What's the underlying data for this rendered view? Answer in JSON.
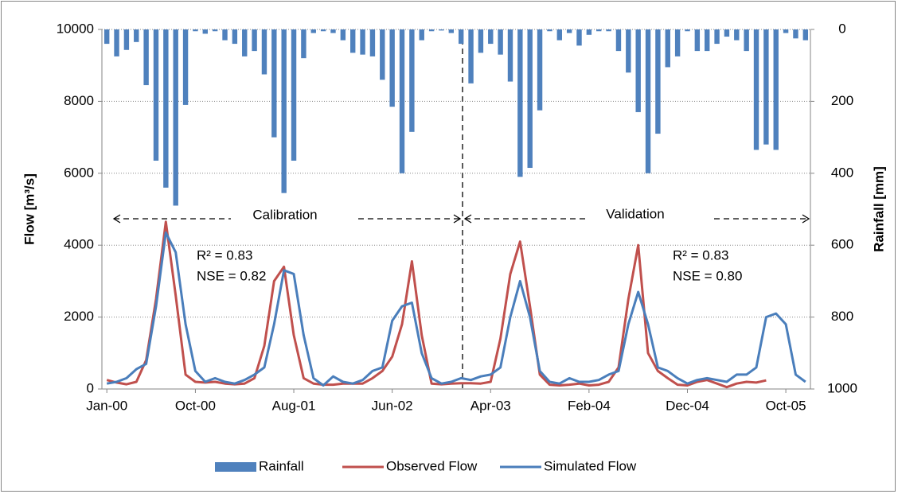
{
  "chart_data": {
    "type": "bar",
    "categories": [
      "Jan-00",
      null,
      null,
      null,
      null,
      null,
      null,
      null,
      null,
      "Oct-00",
      null,
      null,
      null,
      null,
      null,
      null,
      null,
      null,
      null,
      "Aug-01",
      null,
      null,
      null,
      null,
      null,
      null,
      null,
      null,
      null,
      "Jun-02",
      null,
      null,
      null,
      null,
      null,
      null,
      null,
      null,
      null,
      "Apr-03",
      null,
      null,
      null,
      null,
      null,
      null,
      null,
      null,
      null,
      "Feb-04",
      null,
      null,
      null,
      null,
      null,
      null,
      null,
      null,
      null,
      "Dec-04",
      null,
      null,
      null,
      null,
      null,
      null,
      null,
      null,
      null,
      "Oct-05",
      null,
      null
    ],
    "series": [
      {
        "name": "Rainfall",
        "type": "bar",
        "axis": "y2",
        "color": "#4f81bd",
        "values": [
          40,
          75,
          57,
          35,
          155,
          365,
          440,
          490,
          210,
          5,
          12,
          5,
          30,
          40,
          75,
          60,
          125,
          300,
          455,
          365,
          80,
          10,
          5,
          10,
          30,
          65,
          70,
          75,
          140,
          215,
          400,
          285,
          30,
          5,
          3,
          10,
          40,
          150,
          65,
          40,
          70,
          145,
          410,
          385,
          225,
          5,
          30,
          10,
          45,
          15,
          5,
          5,
          60,
          120,
          230,
          400,
          290,
          105,
          75,
          5,
          60,
          60,
          40,
          20,
          30,
          60,
          335,
          320,
          335,
          10,
          25,
          30
        ]
      },
      {
        "name": "Observed Flow",
        "type": "line",
        "color": "#c0504d",
        "values": [
          250,
          180,
          130,
          200,
          800,
          2500,
          4650,
          2600,
          400,
          200,
          180,
          200,
          150,
          130,
          150,
          300,
          1200,
          3000,
          3400,
          1500,
          300,
          150,
          120,
          120,
          150,
          150,
          150,
          300,
          500,
          900,
          1800,
          3550,
          1500,
          150,
          130,
          150,
          160,
          160,
          150,
          200,
          1400,
          3200,
          4100,
          2300,
          400,
          120,
          100,
          120,
          150,
          100,
          120,
          200,
          600,
          2500,
          4000,
          1000,
          500,
          300,
          120,
          100,
          200,
          250,
          150,
          50,
          150,
          200,
          180,
          240,
          null,
          null,
          null,
          null
        ]
      },
      {
        "name": "Simulated Flow",
        "type": "line",
        "color": "#4a7ebb",
        "values": [
          150,
          200,
          300,
          550,
          700,
          2300,
          4350,
          3800,
          1800,
          500,
          200,
          300,
          200,
          150,
          250,
          400,
          600,
          1800,
          3300,
          3200,
          1500,
          300,
          100,
          350,
          200,
          150,
          250,
          500,
          600,
          1900,
          2300,
          2400,
          1000,
          300,
          150,
          200,
          300,
          250,
          350,
          400,
          600,
          2000,
          3000,
          2000,
          500,
          200,
          150,
          300,
          200,
          200,
          250,
          400,
          500,
          1800,
          2700,
          1800,
          600,
          500,
          300,
          150,
          250,
          300,
          250,
          200,
          400,
          400,
          600,
          2000,
          2100,
          1800,
          400,
          200
        ]
      }
    ],
    "ylabel": "Flow [m³/s]",
    "y2label": "Rainfall [mm]",
    "ylim": [
      0,
      10000
    ],
    "yticks": [
      0,
      2000,
      4000,
      6000,
      8000,
      10000
    ],
    "y2lim": [
      0,
      1000
    ],
    "y2ticks": [
      0,
      200,
      400,
      600,
      800,
      1000
    ],
    "y2_reversed": true,
    "grid": true,
    "legend": "bottom",
    "annotations": [
      "Calibration",
      "Validation",
      "R² = 0.83",
      "NSE = 0.82",
      "R² = 0.83",
      "NSE = 0.80"
    ]
  }
}
